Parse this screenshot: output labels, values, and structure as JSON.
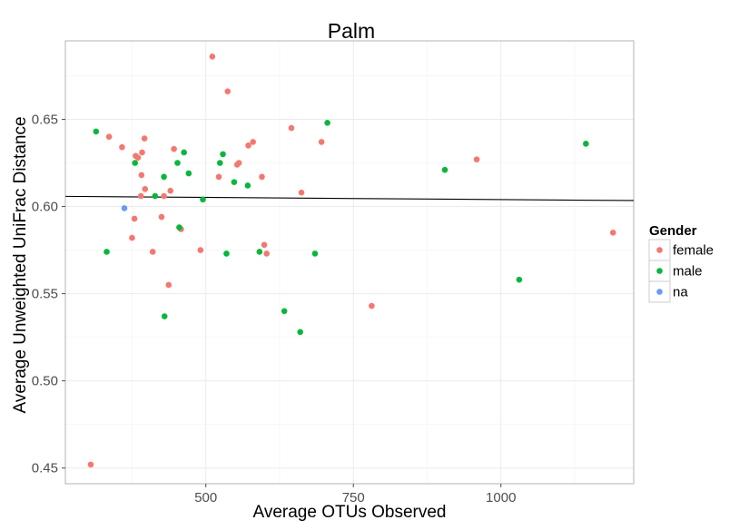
{
  "chart_data": {
    "type": "scatter",
    "title": "Palm",
    "xlabel": "Average OTUs Observed",
    "ylabel": "Average Unweighted UniFrac Distance",
    "xlim": [
      262,
      1225
    ],
    "ylim": [
      0.441,
      0.695
    ],
    "x_ticks": [
      500,
      750,
      1000
    ],
    "x_tick_labels": [
      "500",
      "750",
      "1000"
    ],
    "y_ticks": [
      0.45,
      0.5,
      0.55,
      0.6,
      0.65
    ],
    "y_tick_labels": [
      "0.45",
      "0.50",
      "0.55",
      "0.60",
      "0.65"
    ],
    "grid": true,
    "legend": {
      "title": "Gender",
      "placement": "right"
    },
    "trend_line": {
      "x": [
        262,
        1225
      ],
      "y": [
        0.6058,
        0.6034
      ]
    },
    "series": [
      {
        "name": "female",
        "color": "#F8766D",
        "points": [
          [
            305,
            0.452
          ],
          [
            336,
            0.64
          ],
          [
            358,
            0.634
          ],
          [
            375,
            0.582
          ],
          [
            379,
            0.593
          ],
          [
            381,
            0.629
          ],
          [
            385,
            0.628
          ],
          [
            390,
            0.606
          ],
          [
            391,
            0.618
          ],
          [
            392,
            0.631
          ],
          [
            396,
            0.639
          ],
          [
            397,
            0.61
          ],
          [
            410,
            0.574
          ],
          [
            425,
            0.594
          ],
          [
            429,
            0.606
          ],
          [
            437,
            0.555
          ],
          [
            440,
            0.609
          ],
          [
            446,
            0.633
          ],
          [
            458,
            0.587
          ],
          [
            491,
            0.575
          ],
          [
            511,
            0.686
          ],
          [
            522,
            0.617
          ],
          [
            537,
            0.666
          ],
          [
            553,
            0.624
          ],
          [
            556,
            0.625
          ],
          [
            572,
            0.635
          ],
          [
            580,
            0.637
          ],
          [
            595,
            0.617
          ],
          [
            599,
            0.578
          ],
          [
            603,
            0.573
          ],
          [
            645,
            0.645
          ],
          [
            662,
            0.608
          ],
          [
            696,
            0.637
          ],
          [
            781,
            0.543
          ],
          [
            959,
            0.627
          ],
          [
            1190,
            0.585
          ]
        ]
      },
      {
        "name": "male",
        "color": "#00BA38",
        "points": [
          [
            314,
            0.643
          ],
          [
            332,
            0.574
          ],
          [
            380,
            0.625
          ],
          [
            414,
            0.606
          ],
          [
            429,
            0.617
          ],
          [
            430,
            0.537
          ],
          [
            452,
            0.625
          ],
          [
            455,
            0.588
          ],
          [
            463,
            0.631
          ],
          [
            471,
            0.619
          ],
          [
            495,
            0.604
          ],
          [
            524,
            0.625
          ],
          [
            529,
            0.63
          ],
          [
            535,
            0.573
          ],
          [
            548,
            0.614
          ],
          [
            571,
            0.612
          ],
          [
            591,
            0.574
          ],
          [
            633,
            0.54
          ],
          [
            660,
            0.528
          ],
          [
            685,
            0.573
          ],
          [
            706,
            0.648
          ],
          [
            905,
            0.621
          ],
          [
            1031,
            0.558
          ],
          [
            1144,
            0.636
          ]
        ]
      },
      {
        "name": "na",
        "color": "#619CFF",
        "points": [
          [
            362,
            0.599
          ]
        ]
      }
    ]
  }
}
